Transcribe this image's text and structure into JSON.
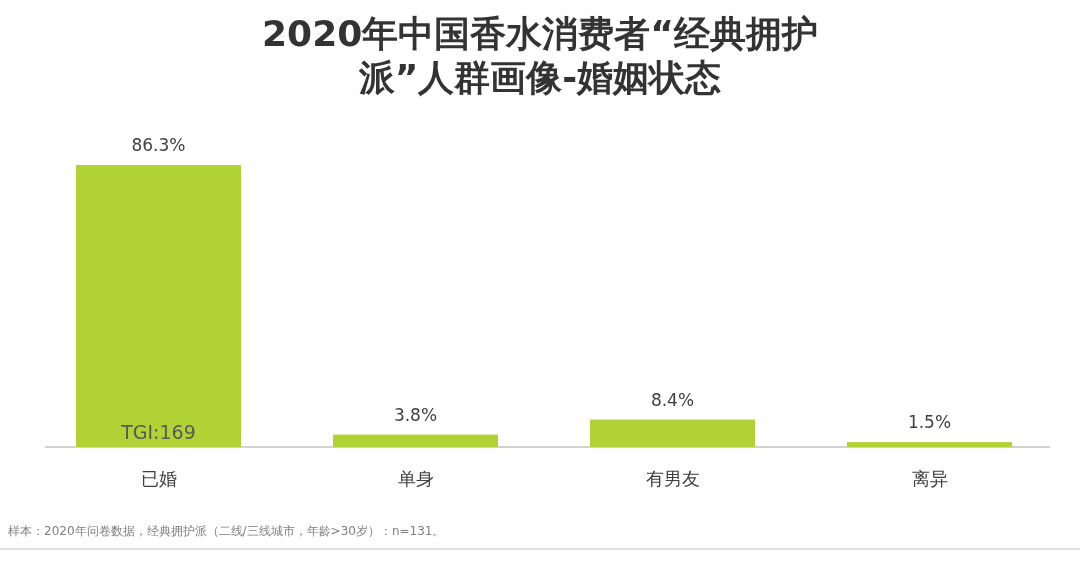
{
  "chart_data": {
    "type": "bar",
    "title": "2020年中国香水消费者“经典拥护派”人群画像-婚姻状态",
    "categories": [
      "已婚",
      "单身",
      "有男友",
      "离异"
    ],
    "values": [
      86.3,
      3.8,
      8.4,
      1.5
    ],
    "value_labels": [
      "86.3%",
      "3.8%",
      "8.4%",
      "1.5%"
    ],
    "color": "#b0d235",
    "annotations": [
      "TGI:169",
      "样本：2020年问卷数据，经典拥护派（二线/三线城市，年龄>30岁）：n=131。"
    ]
  }
}
